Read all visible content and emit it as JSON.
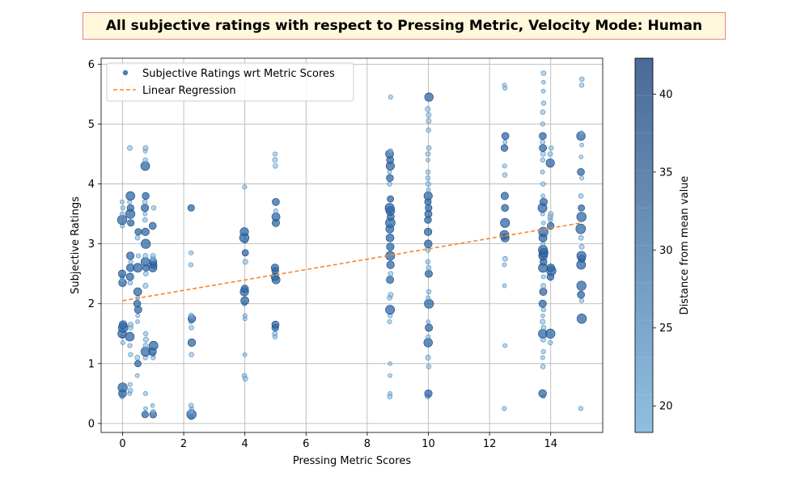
{
  "chart_data": {
    "type": "scatter",
    "title": "All subjective ratings with respect to Pressing Metric, Velocity Mode: Human",
    "xlabel": "Pressing Metric Scores",
    "ylabel": "Subjective Ratings",
    "xlim": [
      -0.7,
      15.7
    ],
    "ylim": [
      -0.15,
      6.1
    ],
    "xticks": [
      0,
      2,
      4,
      6,
      8,
      10,
      12,
      14
    ],
    "yticks": [
      0,
      1,
      2,
      3,
      4,
      5,
      6
    ],
    "grid": true,
    "legend": {
      "placement": "top-left",
      "entries": [
        "Subjective Ratings wrt Metric Scores",
        "Linear Regression"
      ]
    },
    "colorbar": {
      "label": "Distance from mean value",
      "range": [
        18.3,
        42.3
      ],
      "ticks": [
        20,
        25,
        30,
        35,
        40
      ],
      "color_low": "#8fbfe0",
      "color_high": "#4a6a98"
    },
    "regression": {
      "x": [
        0,
        15
      ],
      "y": [
        2.05,
        3.35
      ],
      "color": "#f5862f"
    },
    "scatter_color": "#4a7fb5",
    "columns": [
      {
        "x": 0.0,
        "y": [
          0.45,
          0.5,
          0.6,
          1.35,
          1.45,
          1.5,
          1.55,
          1.6,
          1.65,
          2.35,
          2.4,
          2.45,
          2.5,
          3.3,
          3.4,
          3.5,
          3.6,
          3.7
        ]
      },
      {
        "x": 0.25,
        "y": [
          0.5,
          0.55,
          0.65,
          1.15,
          1.3,
          1.45,
          1.6,
          1.65,
          2.35,
          2.45,
          2.6,
          2.7,
          2.8,
          3.35,
          3.5,
          3.6,
          3.7,
          3.8,
          4.6
        ]
      },
      {
        "x": 0.5,
        "y": [
          0.8,
          1.0,
          1.1,
          1.7,
          1.8,
          1.9,
          2.0,
          2.1,
          2.2,
          2.6,
          2.8,
          3.1,
          3.2
        ]
      },
      {
        "x": 0.75,
        "y": [
          0.15,
          0.25,
          0.5,
          1.1,
          1.2,
          1.3,
          1.4,
          1.5,
          2.3,
          2.5,
          2.6,
          2.7,
          2.8,
          3.0,
          3.2,
          3.4,
          3.5,
          3.6,
          3.7,
          3.8,
          4.3,
          4.4,
          4.55,
          4.6
        ]
      },
      {
        "x": 1.0,
        "y": [
          0.15,
          0.2,
          0.3,
          1.1,
          1.15,
          1.2,
          1.3,
          2.6,
          2.65,
          2.7,
          2.75,
          2.8,
          3.3,
          3.6
        ]
      },
      {
        "x": 2.25,
        "y": [
          0.1,
          0.15,
          0.2,
          0.25,
          0.3,
          1.15,
          1.35,
          1.6,
          1.7,
          1.75,
          1.8,
          2.65,
          2.85,
          3.6
        ]
      },
      {
        "x": 4.0,
        "y": [
          0.75,
          0.8,
          1.15,
          1.75,
          1.8,
          2.0,
          2.05,
          2.2,
          2.25,
          2.7,
          2.85,
          3.05,
          3.1,
          3.2,
          3.95
        ]
      },
      {
        "x": 5.0,
        "y": [
          1.45,
          1.5,
          1.6,
          1.65,
          2.4,
          2.45,
          2.55,
          2.6,
          3.35,
          3.45,
          3.55,
          3.7,
          4.3,
          4.4,
          4.5
        ]
      },
      {
        "x": 8.75,
        "y": [
          0.45,
          0.5,
          0.8,
          1.0,
          1.7,
          1.8,
          1.9,
          2.1,
          2.15,
          2.4,
          2.5,
          2.65,
          2.8,
          2.95,
          3.1,
          3.25,
          3.35,
          3.45,
          3.55,
          3.6,
          3.75,
          4.0,
          4.1,
          4.2,
          4.3,
          4.4,
          4.5,
          4.55,
          5.45
        ]
      },
      {
        "x": 10.0,
        "y": [
          0.45,
          0.5,
          0.95,
          1.1,
          1.35,
          1.45,
          1.6,
          1.7,
          2.0,
          2.1,
          2.2,
          2.5,
          2.6,
          2.7,
          2.9,
          3.0,
          3.2,
          3.4,
          3.5,
          3.6,
          3.7,
          3.8,
          3.9,
          4.0,
          4.1,
          4.2,
          4.4,
          4.5,
          4.6,
          4.9,
          5.05,
          5.15,
          5.25,
          5.45
        ]
      },
      {
        "x": 12.5,
        "y": [
          0.25,
          1.3,
          2.3,
          2.65,
          2.75,
          3.1,
          3.15,
          3.35,
          3.6,
          3.8,
          4.15,
          4.3,
          4.6,
          4.7,
          4.8,
          5.6,
          5.65
        ]
      },
      {
        "x": 13.75,
        "y": [
          0.45,
          0.5,
          0.95,
          1.1,
          1.2,
          1.4,
          1.5,
          1.6,
          1.7,
          1.8,
          1.9,
          2.0,
          2.2,
          2.3,
          2.45,
          2.6,
          2.7,
          2.8,
          2.85,
          2.9,
          3.0,
          3.1,
          3.2,
          3.35,
          3.5,
          3.6,
          3.7,
          3.8,
          4.0,
          4.2,
          4.4,
          4.5,
          4.6,
          4.7,
          4.8,
          5.0,
          5.2,
          5.35,
          5.55,
          5.7,
          5.85
        ]
      },
      {
        "x": 14.0,
        "y": [
          1.35,
          1.5,
          2.45,
          2.55,
          2.6,
          3.3,
          3.4,
          3.45,
          3.5,
          4.35,
          4.5,
          4.6
        ]
      },
      {
        "x": 15.0,
        "y": [
          0.25,
          1.75,
          2.05,
          2.15,
          2.3,
          2.65,
          2.75,
          2.8,
          2.95,
          3.1,
          3.25,
          3.45,
          3.6,
          3.8,
          4.1,
          4.2,
          4.45,
          4.65,
          4.8,
          4.85,
          5.65,
          5.75
        ]
      }
    ]
  }
}
